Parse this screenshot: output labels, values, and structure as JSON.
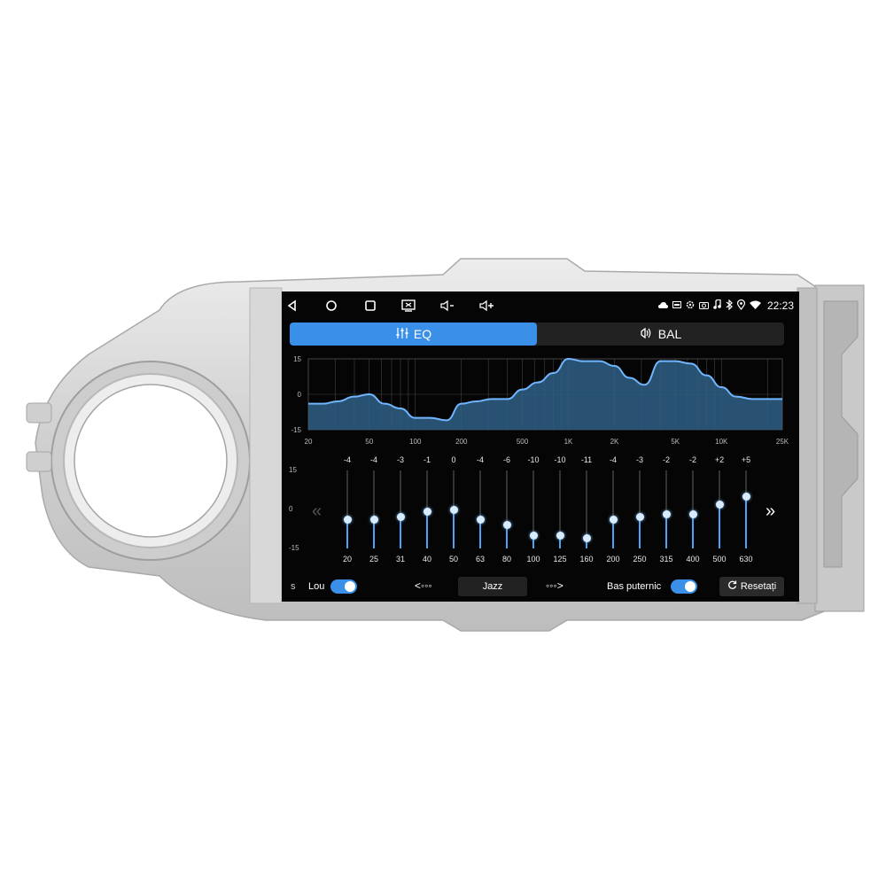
{
  "status_bar": {
    "time": "22:23",
    "icons": [
      "cloud-icon",
      "cast-icon",
      "settings-icon",
      "camera-icon",
      "music-icon",
      "bluetooth-icon",
      "location-icon",
      "wifi-icon"
    ]
  },
  "nav_bar": {
    "icons": [
      "back-icon",
      "home-icon",
      "recents-icon",
      "screen-off-icon",
      "volume-down-icon",
      "volume-up-icon"
    ]
  },
  "tabs": {
    "eq": "EQ",
    "bal": "BAL",
    "active": "eq"
  },
  "chart_data": {
    "type": "area",
    "y_axis_labels": [
      "15",
      "0",
      "-15"
    ],
    "ylim": [
      -15,
      15
    ],
    "x_ticks": [
      "20",
      "50",
      "100",
      "200",
      "500",
      "1K",
      "2K",
      "5K",
      "10K",
      "25K"
    ],
    "x_tick_values": [
      20,
      50,
      100,
      200,
      500,
      1000,
      2000,
      5000,
      10000,
      25000
    ],
    "x_scale": "log",
    "xlim": [
      20,
      25000
    ],
    "curve_x": [
      20,
      25,
      31,
      40,
      50,
      63,
      80,
      100,
      125,
      160,
      200,
      250,
      315,
      400,
      500,
      630,
      800,
      1000,
      1250,
      1600,
      2000,
      2500,
      3150,
      4000,
      5000,
      6300,
      8000,
      10000,
      12500,
      16000,
      20000,
      25000
    ],
    "curve_y": [
      -4,
      -4,
      -3,
      -1,
      0,
      -4,
      -6,
      -10,
      -10,
      -11,
      -4,
      -3,
      -2,
      -2,
      2,
      5,
      9,
      15,
      14,
      14,
      12,
      7,
      4,
      14,
      14,
      13,
      8,
      3,
      -1,
      -2,
      -2,
      -2
    ],
    "grid": true
  },
  "eq": {
    "axis_labels": [
      "15",
      "0",
      "-15"
    ],
    "bands": [
      {
        "freq": "20",
        "value": "-4",
        "v": -4
      },
      {
        "freq": "25",
        "value": "-4",
        "v": -4
      },
      {
        "freq": "31",
        "value": "-3",
        "v": -3
      },
      {
        "freq": "40",
        "value": "-1",
        "v": -1
      },
      {
        "freq": "50",
        "value": "0",
        "v": 0
      },
      {
        "freq": "63",
        "value": "-4",
        "v": -4
      },
      {
        "freq": "80",
        "value": "-6",
        "v": -6
      },
      {
        "freq": "100",
        "value": "-10",
        "v": -10
      },
      {
        "freq": "125",
        "value": "-10",
        "v": -10
      },
      {
        "freq": "160",
        "value": "-11",
        "v": -11
      },
      {
        "freq": "200",
        "value": "-4",
        "v": -4
      },
      {
        "freq": "250",
        "value": "-3",
        "v": -3
      },
      {
        "freq": "315",
        "value": "-2",
        "v": -2
      },
      {
        "freq": "400",
        "value": "-2",
        "v": -2
      },
      {
        "freq": "500",
        "value": "+2",
        "v": 2
      },
      {
        "freq": "630",
        "value": "+5",
        "v": 5
      }
    ],
    "prev_page": "«",
    "next_page": "»"
  },
  "bottom": {
    "left_cut": "s",
    "loud_label": "Lou",
    "loud_on": true,
    "prev_preset": "<◦◦◦",
    "preset": "Jazz",
    "next_preset": "◦◦◦>",
    "bass_label": "Bas puternic",
    "bass_on": true,
    "reset_label": "Resetați"
  },
  "colors": {
    "accent": "#3a8fe8",
    "area_fill": "#2f5f86",
    "curve": "#6fb6ff",
    "bezel": "#d9d9d9"
  }
}
